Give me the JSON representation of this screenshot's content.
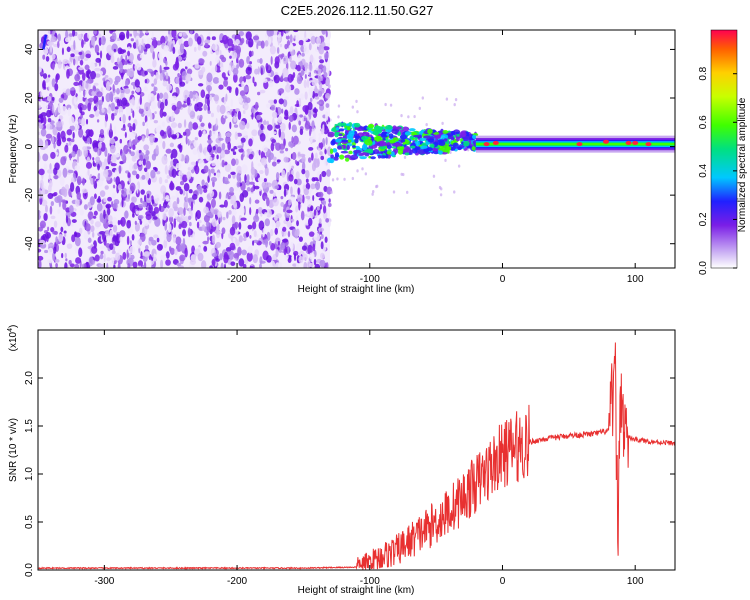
{
  "title": "C2E5.2026.112.11.50.G27",
  "chart_data": [
    {
      "type": "heatmap",
      "panel": "spectrogram",
      "xlabel": "Height of straight line (km)",
      "ylabel": "Frequency (Hz)",
      "xlim": [
        -350,
        130
      ],
      "ylim": [
        -50,
        48
      ],
      "xticks": [
        -300,
        -200,
        -100,
        0,
        100
      ],
      "yticks": [
        -40,
        -20,
        0,
        20,
        40
      ],
      "colorbar": {
        "label": "Normalized spectral amplitude",
        "range": [
          0.0,
          0.98
        ],
        "ticks": [
          "0.0",
          "0.2",
          "0.4",
          "0.6",
          "0.8"
        ],
        "colors": [
          "#f0e8fa",
          "#7a1ee6",
          "#2020ff",
          "#00c8ff",
          "#00e080",
          "#40ff00",
          "#c8ff00",
          "#ffd000",
          "#ff6000",
          "#ff0050"
        ]
      },
      "regions": [
        {
          "name": "noise",
          "x_range": [
            -350,
            -130
          ],
          "freq_range": [
            -50,
            48
          ],
          "amplitude": "0.05-0.25"
        },
        {
          "name": "signal-onset",
          "x_range": [
            -130,
            -20
          ],
          "freq_center": 2,
          "freq_spread": 12,
          "amplitude": "0.25-0.6"
        },
        {
          "name": "signal-steady",
          "x_range": [
            -20,
            130
          ],
          "freq_center": 1,
          "freq_spread": 3,
          "amplitude": "0.5-0.98"
        }
      ]
    },
    {
      "type": "line",
      "panel": "snr",
      "xlabel": "Height of straight line (km)",
      "ylabel": "SNR (10 * v/v)",
      "exponent_label": "(x10",
      "exponent_power": "4",
      "exponent_close": ")",
      "xlim": [
        -350,
        130
      ],
      "ylim": [
        0,
        2.5
      ],
      "xticks": [
        -300,
        -200,
        -100,
        0,
        100
      ],
      "yticks": [
        "0.0",
        "0.5",
        "1.0",
        "1.5",
        "2.0"
      ],
      "series": [
        {
          "name": "SNR",
          "color": "#e83030",
          "x": [
            -350,
            -150,
            -110,
            -100,
            -90,
            -80,
            -70,
            -60,
            -50,
            -40,
            -30,
            -20,
            -10,
            0,
            10,
            20,
            30,
            40,
            50,
            60,
            70,
            80,
            85,
            87,
            89,
            92,
            95,
            100,
            110,
            120,
            130
          ],
          "y": [
            0.02,
            0.02,
            0.03,
            0.08,
            0.15,
            0.2,
            0.3,
            0.4,
            0.5,
            0.62,
            0.75,
            0.9,
            1.05,
            1.2,
            1.28,
            1.33,
            1.36,
            1.38,
            1.4,
            1.41,
            1.42,
            1.45,
            2.0,
            0.4,
            1.9,
            1.45,
            1.38,
            1.36,
            1.34,
            1.33,
            1.32
          ]
        }
      ]
    }
  ]
}
